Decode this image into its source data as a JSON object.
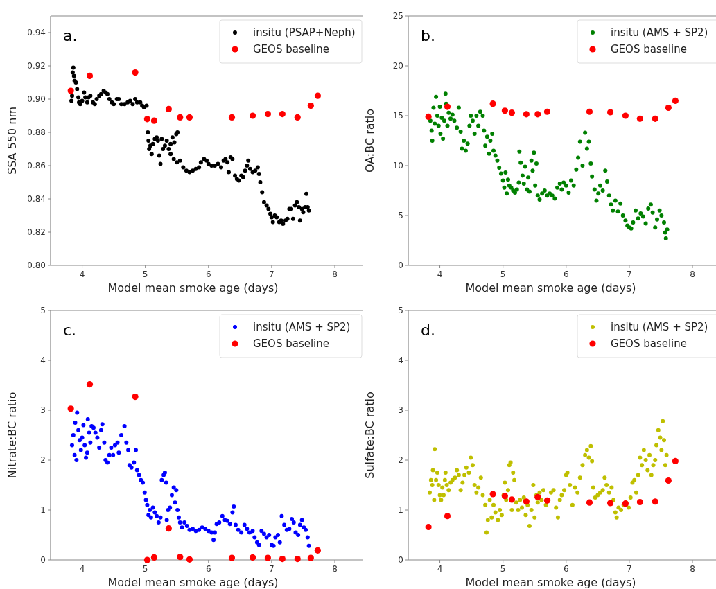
{
  "chart_data": [
    {
      "type": "scatter",
      "xlabel": "Model mean smoke age (days)",
      "ylabel": "SSA 550 nm",
      "annotations": [
        "a."
      ],
      "xlim": [
        3.5,
        8.45
      ],
      "xticks": [
        4,
        5,
        6,
        7,
        8
      ],
      "ylim": [
        0.8,
        0.95
      ],
      "yticks": [
        {
          "value": 0.8,
          "label": "0.80"
        },
        {
          "value": 0.82,
          "label": "0.82"
        },
        {
          "value": 0.84,
          "label": "0.84"
        },
        {
          "value": 0.86,
          "label": "0.86"
        },
        {
          "value": 0.88,
          "label": "0.88"
        },
        {
          "value": 0.9,
          "label": "0.90"
        },
        {
          "value": 0.92,
          "label": "0.92"
        },
        {
          "value": 0.94,
          "label": "0.94"
        }
      ],
      "legend": "top right",
      "marker": "circle",
      "grid": false,
      "series": [
        {
          "name": "insitu (PSAP+Neph)",
          "color": "#000000",
          "x": [
            3.83,
            3.84,
            3.85,
            3.86,
            3.87,
            3.88,
            3.9,
            3.92,
            3.94,
            3.95,
            3.97,
            4.0,
            4.03,
            4.05,
            4.08,
            4.1,
            4.13,
            4.17,
            4.2,
            4.23,
            4.27,
            4.3,
            4.34,
            4.37,
            4.4,
            4.43,
            4.47,
            4.5,
            4.55,
            4.58,
            4.62,
            4.67,
            4.72,
            4.76,
            4.8,
            4.84,
            4.87,
            4.92,
            4.95,
            4.98,
            5.02,
            5.04,
            5.05,
            5.06,
            5.08,
            5.1,
            5.12,
            5.15,
            5.18,
            5.2,
            5.22,
            5.24,
            5.26,
            5.28,
            5.31,
            5.34,
            5.37,
            5.4,
            5.43,
            5.46,
            5.49,
            5.51,
            5.4,
            5.45,
            5.5,
            5.55,
            5.6,
            5.65,
            5.7,
            5.75,
            5.8,
            5.85,
            5.88,
            5.93,
            5.97,
            6.0,
            6.05,
            6.1,
            6.15,
            6.2,
            6.24,
            6.27,
            6.3,
            6.32,
            6.35,
            6.38,
            6.42,
            6.45,
            6.48,
            6.52,
            6.55,
            6.58,
            6.61,
            6.63,
            6.66,
            6.7,
            6.74,
            6.78,
            6.8,
            6.82,
            6.85,
            6.88,
            6.92,
            6.95,
            6.98,
            7.0,
            7.02,
            7.05,
            7.08,
            7.12,
            7.15,
            7.18,
            7.22,
            7.25,
            7.28,
            7.31,
            7.34,
            7.37,
            7.4,
            7.43,
            7.45,
            7.48,
            7.5,
            7.53,
            7.55,
            7.57,
            7.59
          ],
          "values": [
            0.899,
            0.902,
            0.916,
            0.919,
            0.914,
            0.911,
            0.91,
            0.906,
            0.901,
            0.898,
            0.897,
            0.899,
            0.904,
            0.901,
            0.898,
            0.901,
            0.902,
            0.898,
            0.897,
            0.9,
            0.902,
            0.903,
            0.905,
            0.904,
            0.903,
            0.9,
            0.898,
            0.897,
            0.9,
            0.9,
            0.897,
            0.897,
            0.898,
            0.899,
            0.897,
            0.9,
            0.898,
            0.898,
            0.896,
            0.895,
            0.896,
            0.88,
            0.875,
            0.87,
            0.872,
            0.867,
            0.873,
            0.876,
            0.877,
            0.875,
            0.866,
            0.861,
            0.876,
            0.87,
            0.872,
            0.875,
            0.87,
            0.873,
            0.877,
            0.874,
            0.879,
            0.88,
            0.867,
            0.864,
            0.862,
            0.863,
            0.859,
            0.857,
            0.856,
            0.857,
            0.858,
            0.859,
            0.862,
            0.864,
            0.863,
            0.861,
            0.86,
            0.86,
            0.861,
            0.859,
            0.863,
            0.864,
            0.862,
            0.856,
            0.865,
            0.864,
            0.854,
            0.852,
            0.851,
            0.854,
            0.853,
            0.857,
            0.86,
            0.863,
            0.858,
            0.856,
            0.857,
            0.859,
            0.855,
            0.85,
            0.844,
            0.838,
            0.836,
            0.834,
            0.831,
            0.829,
            0.826,
            0.83,
            0.829,
            0.826,
            0.827,
            0.825,
            0.827,
            0.828,
            0.834,
            0.834,
            0.828,
            0.836,
            0.838,
            0.835,
            0.827,
            0.834,
            0.832,
            0.835,
            0.843,
            0.835,
            0.833
          ]
        },
        {
          "name": "GEOS baseline",
          "color": "#ff0000",
          "x": [
            3.82,
            4.12,
            4.84,
            5.03,
            5.14,
            5.37,
            5.55,
            5.7,
            6.37,
            6.7,
            6.94,
            7.17,
            7.41,
            7.62,
            7.73
          ],
          "values": [
            0.905,
            0.914,
            0.916,
            0.888,
            0.887,
            0.894,
            0.889,
            0.889,
            0.889,
            0.89,
            0.891,
            0.891,
            0.889,
            0.896,
            0.902
          ]
        }
      ]
    },
    {
      "type": "scatter",
      "xlabel": "Model mean smoke age (days)",
      "ylabel": "OA:BC ratio",
      "annotations": [
        "b."
      ],
      "xlim": [
        3.5,
        8.45
      ],
      "xticks": [
        4,
        5,
        6,
        7,
        8
      ],
      "ylim": [
        0,
        25
      ],
      "yticks": [
        0,
        5,
        10,
        15,
        20,
        25
      ],
      "legend": "top right",
      "marker": "circle",
      "grid": false,
      "series": [
        {
          "name": "insitu (AMS + SP2)",
          "color": "#008000",
          "x": [
            3.85,
            3.87,
            3.88,
            3.9,
            3.92,
            3.94,
            3.96,
            3.98,
            4.0,
            4.01,
            4.03,
            4.05,
            4.07,
            4.09,
            4.1,
            4.12,
            4.14,
            4.17,
            4.2,
            4.23,
            4.27,
            4.3,
            4.33,
            4.35,
            4.38,
            4.41,
            4.44,
            4.47,
            4.49,
            4.52,
            4.55,
            4.58,
            4.61,
            4.64,
            4.68,
            4.7,
            4.72,
            4.75,
            4.78,
            4.8,
            4.83,
            4.85,
            4.88,
            4.91,
            4.94,
            4.97,
            5.0,
            5.02,
            5.04,
            5.06,
            5.08,
            5.1,
            5.13,
            5.16,
            5.19,
            5.22,
            5.25,
            5.26,
            5.28,
            5.31,
            5.33,
            5.35,
            5.38,
            5.4,
            5.42,
            5.45,
            5.47,
            5.49,
            5.51,
            5.53,
            5.55,
            5.58,
            5.62,
            5.66,
            5.7,
            5.74,
            5.78,
            5.82,
            5.86,
            5.9,
            5.93,
            5.96,
            6.0,
            6.04,
            6.08,
            6.12,
            6.16,
            6.19,
            6.22,
            6.26,
            6.3,
            6.33,
            6.36,
            6.39,
            6.41,
            6.45,
            6.48,
            6.51,
            6.54,
            6.58,
            6.62,
            6.65,
            6.68,
            6.71,
            6.74,
            6.78,
            6.82,
            6.86,
            6.9,
            6.94,
            6.97,
            7.0,
            7.03,
            7.06,
            7.1,
            7.14,
            7.18,
            7.22,
            7.26,
            7.3,
            7.34,
            7.37,
            7.41,
            7.44,
            7.48,
            7.51,
            7.55,
            7.57,
            7.58,
            7.6
          ],
          "values": [
            14.5,
            13.5,
            12.5,
            15.8,
            14.2,
            16.9,
            15.0,
            14.0,
            15.9,
            13.2,
            14.8,
            12.7,
            14.5,
            17.2,
            16.2,
            14.0,
            15.3,
            14.7,
            15.1,
            14.5,
            13.8,
            15.8,
            13.4,
            11.7,
            12.5,
            11.5,
            12.2,
            14.0,
            15.0,
            14.5,
            13.2,
            15.0,
            14.0,
            15.4,
            15.0,
            13.5,
            12.0,
            12.9,
            11.2,
            12.5,
            13.2,
            11.5,
            11.0,
            10.5,
            9.8,
            9.2,
            8.5,
            7.8,
            9.3,
            7.2,
            8.6,
            8.0,
            7.8,
            7.5,
            7.3,
            7.6,
            8.3,
            11.4,
            10.3,
            9.0,
            8.2,
            9.9,
            7.6,
            8.8,
            7.4,
            10.5,
            9.5,
            11.3,
            8.0,
            10.2,
            7.0,
            6.6,
            7.2,
            7.5,
            7.0,
            7.2,
            7.0,
            6.7,
            7.8,
            8.2,
            7.6,
            8.3,
            8.0,
            7.3,
            8.5,
            8.0,
            9.6,
            10.8,
            12.4,
            10.0,
            13.3,
            11.7,
            12.4,
            10.2,
            8.9,
            7.6,
            6.5,
            7.2,
            8.0,
            7.5,
            9.5,
            8.4,
            7.0,
            6.1,
            5.5,
            6.5,
            5.4,
            6.2,
            5.0,
            4.5,
            4.0,
            3.8,
            3.7,
            4.3,
            5.5,
            4.7,
            5.2,
            4.9,
            4.2,
            5.7,
            6.1,
            5.3,
            3.8,
            4.6,
            5.5,
            5.0,
            4.3,
            3.3,
            2.7,
            3.6
          ]
        },
        {
          "name": "GEOS baseline",
          "color": "#ff0000",
          "x": [
            3.82,
            4.12,
            4.84,
            5.03,
            5.14,
            5.37,
            5.55,
            5.7,
            6.37,
            6.7,
            6.94,
            7.17,
            7.41,
            7.62,
            7.73
          ],
          "values": [
            14.9,
            15.9,
            16.2,
            15.5,
            15.3,
            15.15,
            15.15,
            15.4,
            15.4,
            15.35,
            15.0,
            14.7,
            14.7,
            15.8,
            16.5
          ]
        }
      ]
    },
    {
      "type": "scatter",
      "xlabel": "Model mean smoke age (days)",
      "ylabel": "Nitrate:BC ratio",
      "annotations": [
        "c."
      ],
      "xlim": [
        3.5,
        8.45
      ],
      "xticks": [
        4,
        5,
        6,
        7,
        8
      ],
      "ylim": [
        0,
        5
      ],
      "yticks": [
        0,
        1,
        2,
        3,
        4,
        5
      ],
      "legend": "top right",
      "marker": "circle",
      "grid": false,
      "series": [
        {
          "name": "insitu (AMS + SP2)",
          "color": "#0000ff",
          "x": [
            3.84,
            3.86,
            3.88,
            3.89,
            3.91,
            3.92,
            3.94,
            3.96,
            3.98,
            4.0,
            4.02,
            4.04,
            4.06,
            4.08,
            4.09,
            4.11,
            4.13,
            4.15,
            4.18,
            4.21,
            4.24,
            4.27,
            4.3,
            4.32,
            4.35,
            4.37,
            4.4,
            4.43,
            4.46,
            4.49,
            4.52,
            4.56,
            4.58,
            4.62,
            4.67,
            4.7,
            4.73,
            4.75,
            4.78,
            4.82,
            4.85,
            4.87,
            4.9,
            4.93,
            4.96,
            4.99,
            5.01,
            5.03,
            5.05,
            5.07,
            5.09,
            5.12,
            5.15,
            5.18,
            5.21,
            5.24,
            5.26,
            5.29,
            5.31,
            5.33,
            5.34,
            5.36,
            5.39,
            5.42,
            5.45,
            5.47,
            5.49,
            5.51,
            5.53,
            5.55,
            5.58,
            5.62,
            5.66,
            5.7,
            5.75,
            5.8,
            5.85,
            5.9,
            5.95,
            6.0,
            6.05,
            6.08,
            6.1,
            6.13,
            6.17,
            6.22,
            6.26,
            6.3,
            6.34,
            6.38,
            6.4,
            6.43,
            6.47,
            6.52,
            6.57,
            6.61,
            6.65,
            6.7,
            6.73,
            6.77,
            6.8,
            6.84,
            6.88,
            6.92,
            6.96,
            7.0,
            7.03,
            7.06,
            7.1,
            7.13,
            7.16,
            7.2,
            7.24,
            7.28,
            7.32,
            7.35,
            7.38,
            7.42,
            7.45,
            7.48,
            7.51,
            7.54,
            7.57,
            7.59
          ],
          "values": [
            2.3,
            2.5,
            2.1,
            2.75,
            2.0,
            2.95,
            2.6,
            2.4,
            2.2,
            2.45,
            2.7,
            2.3,
            2.05,
            2.15,
            2.82,
            2.55,
            2.35,
            2.68,
            2.65,
            2.55,
            2.45,
            2.25,
            2.6,
            2.72,
            2.35,
            2.0,
            1.95,
            2.1,
            2.25,
            2.1,
            2.3,
            2.35,
            2.15,
            2.5,
            2.68,
            2.35,
            2.2,
            1.9,
            1.85,
            1.95,
            2.2,
            1.8,
            1.7,
            1.6,
            1.55,
            1.35,
            1.2,
            1.1,
            0.9,
            1.0,
            0.85,
            1.05,
            0.95,
            0.88,
            0.75,
            0.85,
            1.6,
            1.7,
            1.75,
            1.55,
            0.8,
            1.0,
            1.05,
            1.3,
            1.45,
            1.15,
            1.4,
            1.0,
            0.85,
            0.75,
            0.65,
            0.75,
            0.68,
            0.6,
            0.62,
            0.58,
            0.6,
            0.65,
            0.62,
            0.58,
            0.55,
            0.4,
            0.55,
            0.72,
            0.75,
            0.88,
            0.8,
            0.78,
            0.72,
            0.95,
            1.07,
            0.7,
            0.6,
            0.55,
            0.7,
            0.62,
            0.55,
            0.58,
            0.45,
            0.35,
            0.3,
            0.58,
            0.52,
            0.45,
            0.5,
            0.3,
            0.28,
            0.45,
            0.5,
            0.35,
            0.88,
            0.7,
            0.6,
            0.62,
            0.82,
            0.75,
            0.55,
            0.5,
            0.7,
            0.8,
            0.65,
            0.6,
            0.45,
            0.28
          ]
        },
        {
          "name": "GEOS baseline",
          "color": "#ff0000",
          "x": [
            3.82,
            4.12,
            4.84,
            5.03,
            5.14,
            5.37,
            5.55,
            5.7,
            6.37,
            6.7,
            6.94,
            7.17,
            7.41,
            7.62,
            7.73
          ],
          "values": [
            3.03,
            3.52,
            3.27,
            0.0,
            0.05,
            0.63,
            0.06,
            0.01,
            0.04,
            0.05,
            0.04,
            0.02,
            0.02,
            0.04,
            0.19
          ]
        }
      ]
    },
    {
      "type": "scatter",
      "xlabel": "Model mean smoke age (days)",
      "ylabel": "Sulfate:BC ratio",
      "annotations": [
        "d."
      ],
      "xlim": [
        3.5,
        8.45
      ],
      "xticks": [
        4,
        5,
        6,
        7,
        8
      ],
      "ylim": [
        0,
        5
      ],
      "yticks": [
        0,
        1,
        2,
        3,
        4,
        5
      ],
      "legend": "top right",
      "marker": "circle",
      "grid": false,
      "series": [
        {
          "name": "insitu (AMS + SP2)",
          "color": "#bfbf00",
          "x": [
            3.84,
            3.86,
            3.88,
            3.89,
            3.91,
            3.92,
            3.94,
            3.96,
            3.98,
            4.0,
            4.02,
            4.04,
            4.06,
            4.08,
            4.09,
            4.11,
            4.14,
            4.17,
            4.2,
            4.24,
            4.27,
            4.3,
            4.33,
            4.36,
            4.39,
            4.42,
            4.46,
            4.49,
            4.52,
            4.55,
            4.58,
            4.61,
            4.65,
            4.68,
            4.72,
            4.74,
            4.76,
            4.79,
            4.82,
            4.85,
            4.88,
            4.92,
            4.95,
            4.98,
            5.01,
            5.03,
            5.05,
            5.08,
            5.1,
            5.12,
            5.14,
            5.16,
            5.18,
            5.21,
            5.24,
            5.27,
            5.3,
            5.33,
            5.36,
            5.39,
            5.42,
            5.45,
            5.48,
            5.5,
            5.53,
            5.55,
            5.58,
            5.61,
            5.64,
            5.68,
            5.72,
            5.76,
            5.8,
            5.84,
            5.87,
            5.9,
            5.93,
            5.97,
            6.0,
            6.02,
            6.06,
            6.1,
            6.14,
            6.18,
            6.22,
            6.26,
            6.3,
            6.33,
            6.36,
            6.39,
            6.41,
            6.43,
            6.46,
            6.5,
            6.54,
            6.58,
            6.61,
            6.64,
            6.68,
            6.72,
            6.75,
            6.78,
            6.8,
            6.83,
            6.87,
            6.91,
            6.95,
            6.99,
            7.02,
            7.05,
            7.08,
            7.11,
            7.14,
            7.17,
            7.2,
            7.23,
            7.26,
            7.29,
            7.32,
            7.35,
            7.38,
            7.41,
            7.43,
            7.46,
            7.49,
            7.51,
            7.53,
            7.55,
            7.57,
            7.59,
            7.61
          ],
          "values": [
            1.35,
            1.6,
            1.5,
            1.8,
            1.2,
            2.22,
            1.6,
            1.75,
            1.5,
            1.3,
            1.2,
            1.45,
            1.3,
            1.6,
            1.75,
            1.5,
            1.4,
            1.55,
            1.6,
            1.65,
            1.8,
            1.7,
            1.4,
            1.55,
            1.7,
            1.85,
            1.75,
            2.05,
            1.9,
            1.5,
            1.35,
            1.45,
            1.65,
            1.3,
            1.1,
            0.55,
            0.8,
            1.2,
            0.85,
            1.1,
            0.95,
            0.8,
            1.0,
            0.9,
            1.3,
            1.55,
            1.2,
            1.4,
            1.9,
            1.95,
            1.0,
            1.75,
            1.6,
            1.15,
            1.0,
            1.2,
            1.05,
            1.25,
            0.9,
            1.1,
            0.68,
            1.0,
            1.5,
            0.85,
            1.3,
            1.15,
            1.35,
            1.2,
            1.4,
            1.1,
            1.2,
            1.35,
            1.4,
            1.05,
            0.85,
            1.2,
            1.3,
            1.4,
            1.7,
            1.75,
            1.5,
            1.1,
            1.45,
            1.35,
            1.65,
            1.9,
            2.1,
            2.2,
            2.05,
            2.28,
            1.98,
            1.45,
            1.25,
            1.3,
            1.35,
            1.4,
            1.65,
            1.5,
            1.35,
            1.45,
            1.2,
            0.95,
            0.85,
            1.05,
            1.0,
            1.1,
            1.15,
            1.05,
            1.25,
            1.55,
            1.6,
            1.35,
            1.7,
            2.05,
            1.9,
            2.2,
            2.0,
            1.8,
            2.1,
            1.7,
            1.9,
            2.0,
            2.3,
            2.6,
            2.45,
            2.2,
            2.78,
            2.4,
            1.9,
            2.1,
            1.6
          ]
        },
        {
          "name": "GEOS baseline",
          "color": "#ff0000",
          "x": [
            3.82,
            4.12,
            4.84,
            5.03,
            5.14,
            5.37,
            5.55,
            5.7,
            6.37,
            6.7,
            6.94,
            7.17,
            7.41,
            7.62,
            7.73
          ],
          "values": [
            0.66,
            0.88,
            1.32,
            1.28,
            1.21,
            1.17,
            1.26,
            1.19,
            1.15,
            1.14,
            1.13,
            1.16,
            1.17,
            1.59,
            1.98
          ]
        }
      ]
    }
  ]
}
